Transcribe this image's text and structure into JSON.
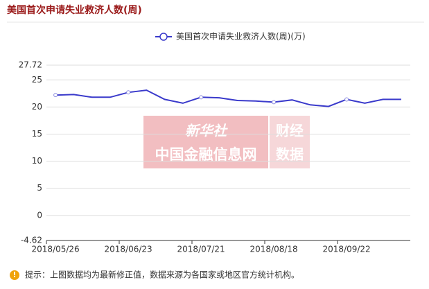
{
  "chart_data": {
    "type": "line",
    "title": "美国首次申请失业救济人数(周)",
    "categories": [
      "2018/05/26",
      null,
      null,
      null,
      "2018/06/23",
      null,
      null,
      null,
      "2018/07/21",
      null,
      null,
      null,
      "2018/08/18",
      null,
      null,
      null,
      "2018/09/22",
      null,
      null,
      null
    ],
    "series": [
      {
        "name": "美国首次申请失业救济人数(周)(万)",
        "color": "#3a3acb",
        "values": [
          22.2,
          22.3,
          21.8,
          21.8,
          22.7,
          23.1,
          21.4,
          20.7,
          21.8,
          21.7,
          21.2,
          21.1,
          20.9,
          21.3,
          20.4,
          20.1,
          21.4,
          20.7,
          21.4,
          21.4
        ]
      }
    ],
    "ylim": [
      -4.62,
      27.72
    ],
    "yticks": [
      -4.62,
      0,
      5,
      10,
      15,
      20,
      25,
      27.72
    ],
    "grid": true,
    "watermark": [
      "新华社",
      "中国金融信息网",
      "财经",
      "数据"
    ],
    "footer": "提示：上图数据均为最新修正值，数据来源为各国家或地区官方统计机构。"
  }
}
